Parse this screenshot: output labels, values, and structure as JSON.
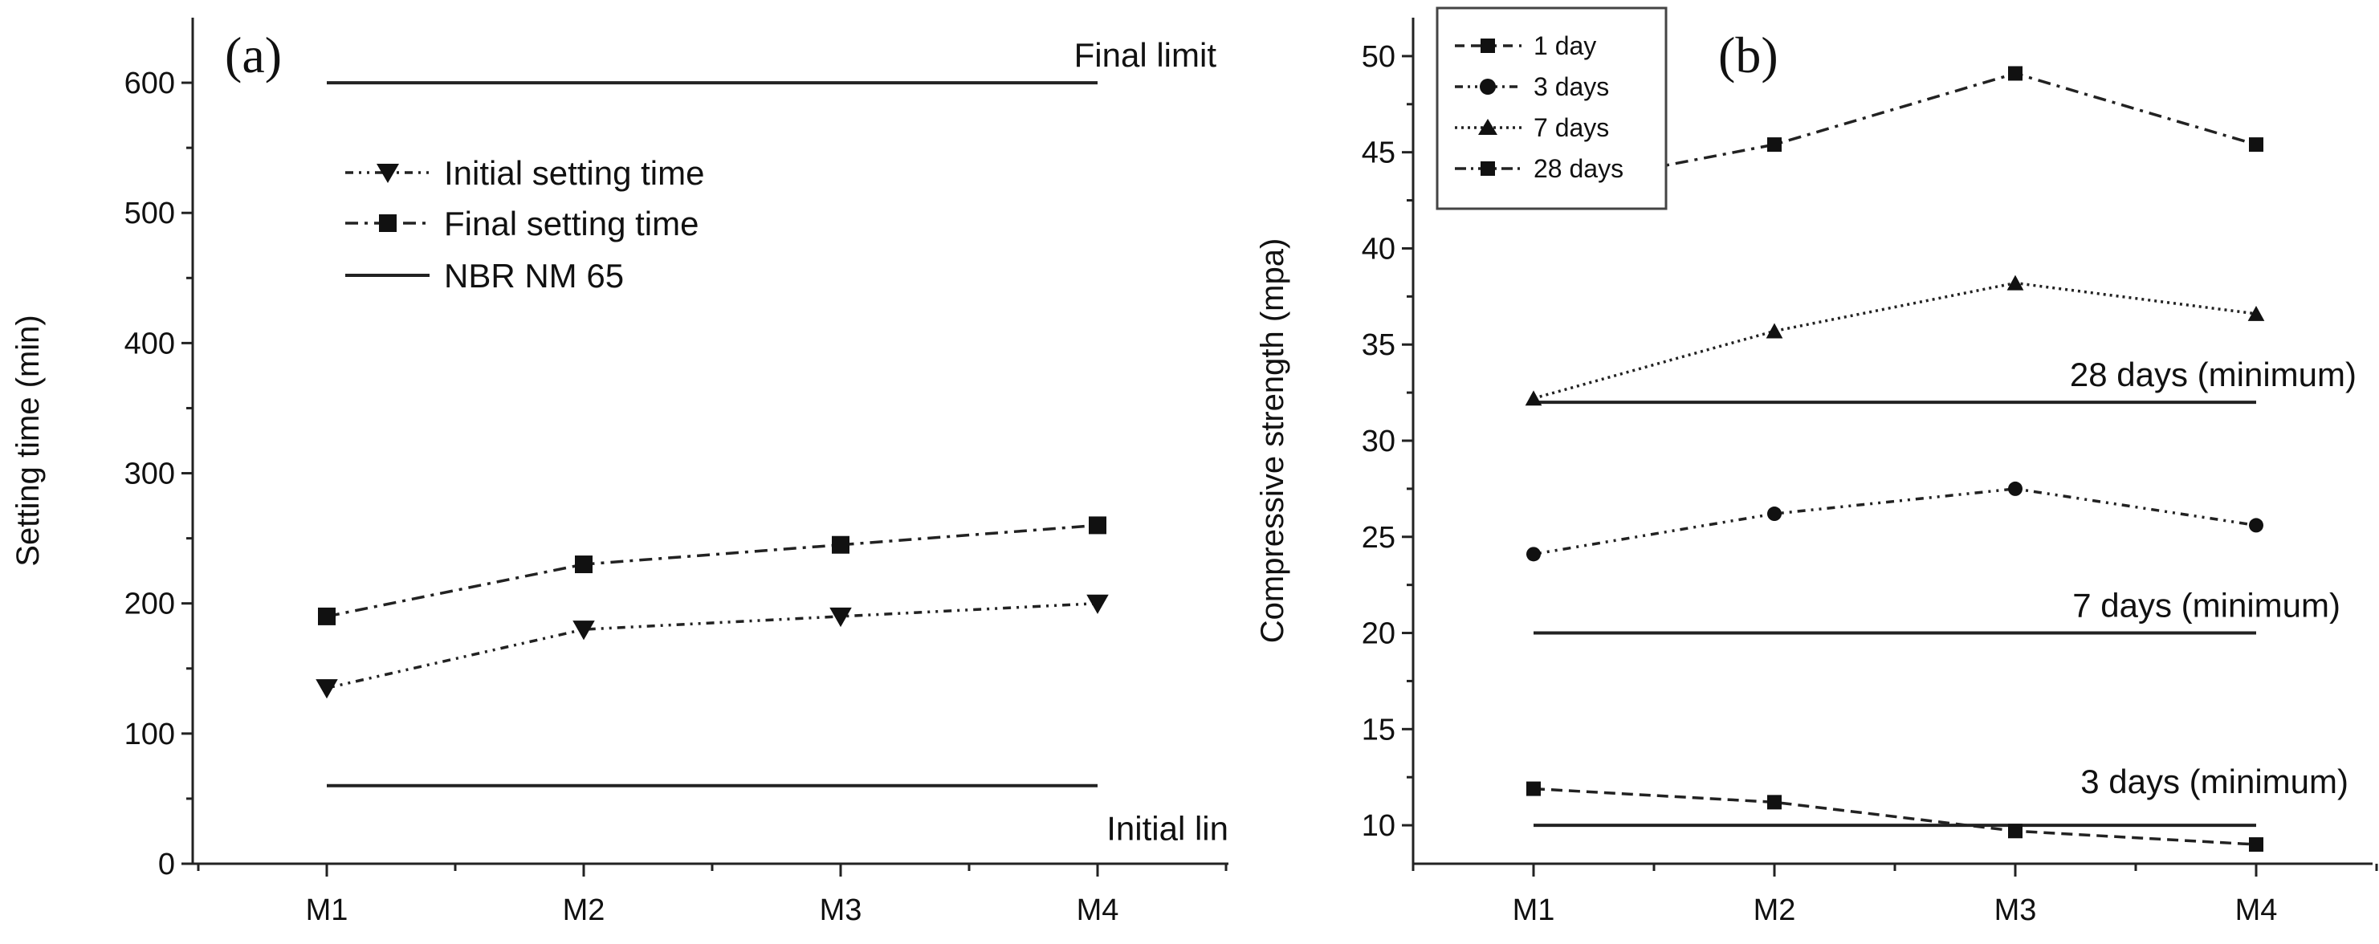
{
  "chart_data": [
    {
      "type": "line",
      "panel_label": "(a)",
      "ylabel": "Setting time (min)",
      "xlabel": "",
      "categories": [
        "M1",
        "M2",
        "M3",
        "M4"
      ],
      "ylim": [
        0,
        650
      ],
      "yticks": [
        0,
        100,
        200,
        300,
        400,
        500,
        600
      ],
      "series": [
        {
          "name": "Initial setting time",
          "values": [
            135,
            180,
            190,
            200
          ],
          "marker": "triangle-down",
          "dash": "dash-dot-dot"
        },
        {
          "name": "Final setting time",
          "values": [
            190,
            230,
            245,
            260
          ],
          "marker": "square",
          "dash": "dash-dot"
        }
      ],
      "reference_lines": [
        {
          "value": 600,
          "label": "Final limit"
        },
        {
          "value": 60,
          "label": "Initial lin"
        }
      ],
      "reference_legend": "NBR NM 65",
      "legend_position": "top-left"
    },
    {
      "type": "line",
      "panel_label": "(b)",
      "ylabel": "Compressive strength (mpa)",
      "xlabel": "",
      "categories": [
        "M1",
        "M2",
        "M3",
        "M4"
      ],
      "ylim": [
        8,
        52
      ],
      "yticks": [
        10,
        15,
        20,
        25,
        30,
        35,
        40,
        45,
        50
      ],
      "series": [
        {
          "name": "1 day",
          "values": [
            11.9,
            11.2,
            9.7,
            9.0
          ],
          "marker": "square",
          "dash": "dash"
        },
        {
          "name": "3 days",
          "values": [
            24.1,
            26.2,
            27.5,
            25.6
          ],
          "marker": "circle",
          "dash": "dash-dot-dot"
        },
        {
          "name": "7 days",
          "values": [
            32.2,
            35.7,
            38.2,
            36.6
          ],
          "marker": "triangle-up",
          "dash": "dot"
        },
        {
          "name": "28 days",
          "values": [
            43.0,
            45.4,
            49.1,
            45.4
          ],
          "marker": "square",
          "dash": "dash-dot"
        }
      ],
      "reference_lines": [
        {
          "value": 32,
          "label": "28 days (minimum)"
        },
        {
          "value": 20,
          "label": "7 days (minimum)"
        },
        {
          "value": 10,
          "label": "3 days (minimum)"
        }
      ],
      "legend_position": "top-left"
    }
  ]
}
